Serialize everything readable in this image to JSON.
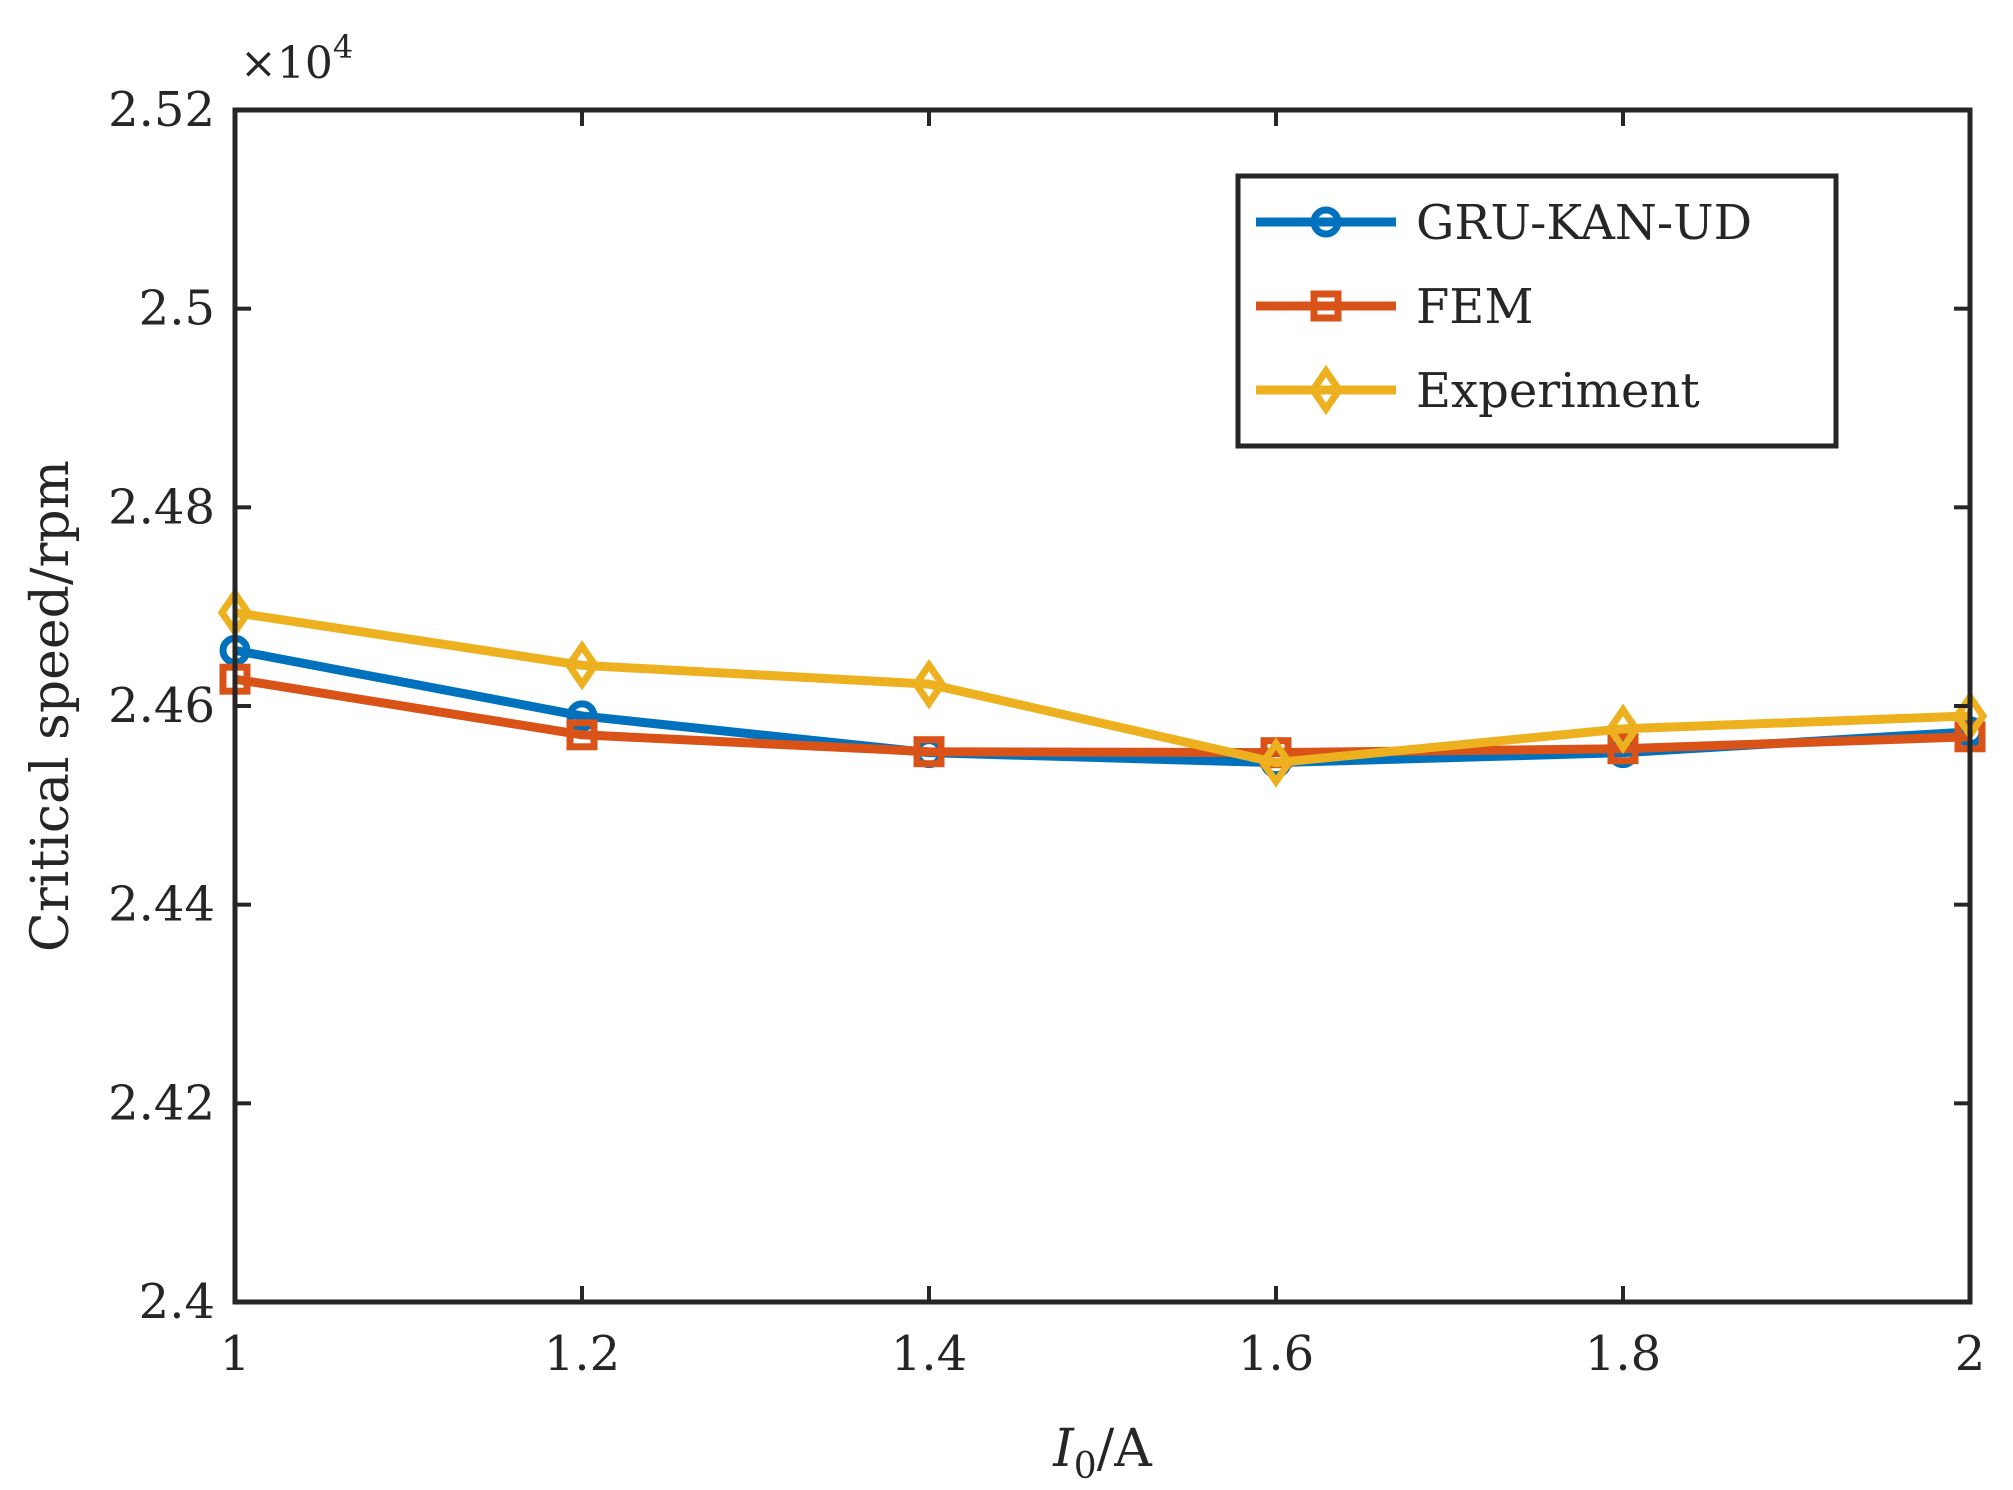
{
  "chart_data": {
    "type": "line",
    "title": "",
    "xlabel_var": "I",
    "xlabel_sub": "0",
    "xlabel_unit": "/A",
    "ylabel": "Critical speed/rpm",
    "y_exponent_times": "×10",
    "y_exponent_power": "4",
    "x": [
      1,
      1.2,
      1.4,
      1.6,
      1.8,
      2
    ],
    "xlim": [
      1,
      2
    ],
    "ylim": [
      2.4,
      2.52
    ],
    "x_ticks": [
      1,
      1.2,
      1.4,
      1.6,
      1.8,
      2
    ],
    "x_tick_labels": [
      "1",
      "1.2",
      "1.4",
      "1.6",
      "1.8",
      "2"
    ],
    "y_ticks": [
      2.4,
      2.42,
      2.44,
      2.46,
      2.48,
      2.5,
      2.52
    ],
    "y_tick_labels": [
      "2.4",
      "2.42",
      "2.44",
      "2.46",
      "2.48",
      "2.5",
      "2.52"
    ],
    "grid": false,
    "legend_position": "top-right",
    "series": [
      {
        "name": "GRU-KAN-UD",
        "color": "#0072BD",
        "marker": "circle",
        "values": [
          2.4656,
          2.459,
          2.4553,
          2.4543,
          2.4553,
          2.4574
        ]
      },
      {
        "name": "FEM",
        "color": "#D95319",
        "marker": "square",
        "values": [
          2.4627,
          2.4571,
          2.4554,
          2.4553,
          2.4557,
          2.4569
        ]
      },
      {
        "name": "Experiment",
        "color": "#EDB120",
        "marker": "diamond",
        "values": [
          2.4694,
          2.4641,
          2.4622,
          2.4543,
          2.4577,
          2.459
        ]
      }
    ]
  }
}
